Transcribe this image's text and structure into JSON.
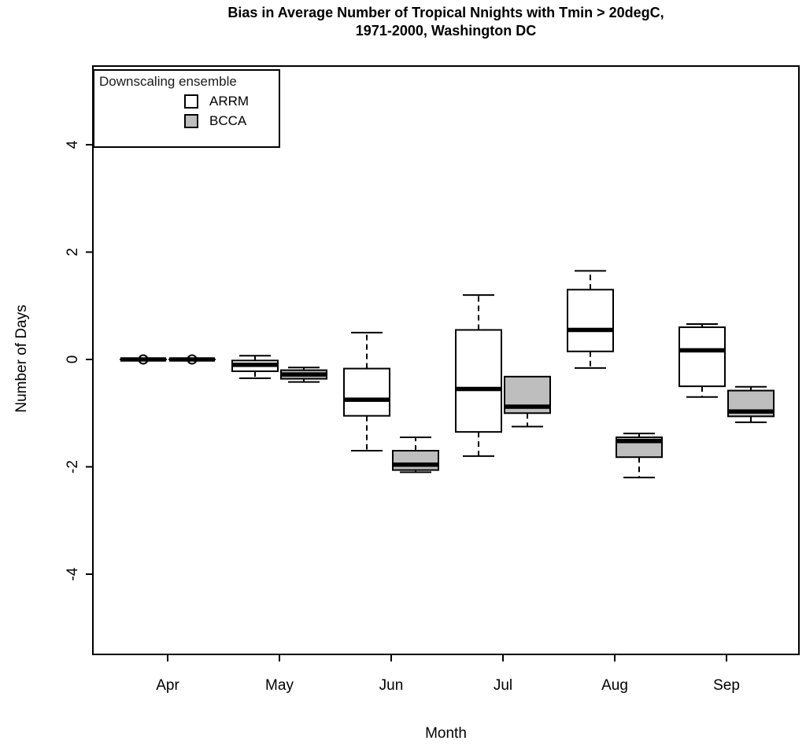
{
  "chart_data": {
    "type": "boxplot",
    "title": "Bias in Average Number of Tropical Nnights with Tmin > 20degC, 1971-2000, Washington DC",
    "title_lines": [
      "Bias in Average Number of Tropical Nnights with Tmin > 20degC,",
      "1971-2000, Washington DC"
    ],
    "xlabel": "Month",
    "ylabel": "Number of Days",
    "ylim": [
      -5.5,
      5.5
    ],
    "yticks": [
      4,
      2,
      0,
      -2,
      -4
    ],
    "ytick_labels": [
      "4",
      "2",
      "0",
      "-2",
      "-4"
    ],
    "categories": [
      "Apr",
      "May",
      "Jun",
      "Jul",
      "Aug",
      "Sep"
    ],
    "grid": false,
    "legend": {
      "title": "Downscaling ensemble",
      "position": "top-left",
      "entries": [
        {
          "label": "ARRM",
          "fill": "#ffffff"
        },
        {
          "label": "BCCA",
          "fill": "#bebebe"
        }
      ]
    },
    "colors": {
      "arrm_fill": "#ffffff",
      "bcca_fill": "#bebebe",
      "stroke": "#000000",
      "background": "#ffffff"
    },
    "series": [
      {
        "name": "ARRM",
        "fill": "#ffffff",
        "boxes": [
          {
            "category": "Apr",
            "whisker_low": 0,
            "q1": 0,
            "median": 0,
            "q3": 0,
            "whisker_high": 0,
            "outliers": [
              0
            ]
          },
          {
            "category": "May",
            "whisker_low": -0.35,
            "q1": -0.22,
            "median": -0.1,
            "q3": -0.02,
            "whisker_high": 0.07,
            "outliers": []
          },
          {
            "category": "Jun",
            "whisker_low": -1.7,
            "q1": -1.05,
            "median": -0.75,
            "q3": -0.17,
            "whisker_high": 0.5,
            "outliers": []
          },
          {
            "category": "Jul",
            "whisker_low": -1.8,
            "q1": -1.35,
            "median": -0.55,
            "q3": 0.55,
            "whisker_high": 1.2,
            "outliers": []
          },
          {
            "category": "Aug",
            "whisker_low": -0.16,
            "q1": 0.15,
            "median": 0.55,
            "q3": 1.3,
            "whisker_high": 1.65,
            "outliers": []
          },
          {
            "category": "Sep",
            "whisker_low": -0.7,
            "q1": -0.5,
            "median": 0.17,
            "q3": 0.6,
            "whisker_high": 0.66,
            "outliers": []
          }
        ]
      },
      {
        "name": "BCCA",
        "fill": "#bebebe",
        "boxes": [
          {
            "category": "Apr",
            "whisker_low": 0,
            "q1": 0,
            "median": 0,
            "q3": 0,
            "whisker_high": 0,
            "outliers": [
              0
            ]
          },
          {
            "category": "May",
            "whisker_low": -0.42,
            "q1": -0.36,
            "median": -0.28,
            "q3": -0.2,
            "whisker_high": -0.15,
            "outliers": []
          },
          {
            "category": "Jun",
            "whisker_low": -2.1,
            "q1": -2.06,
            "median": -1.96,
            "q3": -1.7,
            "whisker_high": -1.45,
            "outliers": []
          },
          {
            "category": "Jul",
            "whisker_low": -1.25,
            "q1": -1.0,
            "median": -0.88,
            "q3": -0.32,
            "whisker_high": -0.32,
            "outliers": []
          },
          {
            "category": "Aug",
            "whisker_low": -2.2,
            "q1": -1.82,
            "median": -1.52,
            "q3": -1.45,
            "whisker_high": -1.38,
            "outliers": []
          },
          {
            "category": "Sep",
            "whisker_low": -1.17,
            "q1": -1.06,
            "median": -0.97,
            "q3": -0.58,
            "whisker_high": -0.51,
            "outliers": []
          }
        ]
      }
    ]
  }
}
